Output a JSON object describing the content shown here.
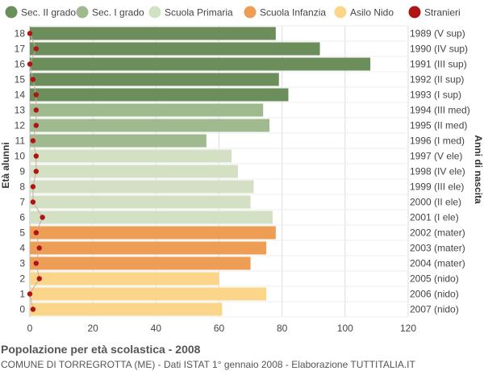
{
  "chart_data": {
    "type": "bar",
    "orientation": "horizontal",
    "ylabel_left": "Età alunni",
    "ylabel_right": "Anni di nascita",
    "xlim": [
      0,
      120
    ],
    "x_ticks": [
      "0",
      "20",
      "40",
      "60",
      "80",
      "100",
      "120"
    ],
    "grid": true,
    "legend_position": "top",
    "legend": [
      {
        "name": "Sec. II grado",
        "color": "#6b8e5a"
      },
      {
        "name": "Sec. I grado",
        "color": "#9fba8e"
      },
      {
        "name": "Scuola Primaria",
        "color": "#d4e0c4"
      },
      {
        "name": "Scuola Infanzia",
        "color": "#ee9d55"
      },
      {
        "name": "Asilo Nido",
        "color": "#fbd68a"
      },
      {
        "name": "Stranieri",
        "color": "#b01515"
      }
    ],
    "rows": [
      {
        "age": "18",
        "birth": "1989 (V sup)",
        "value": 78,
        "group": 0,
        "stranieri": 0
      },
      {
        "age": "17",
        "birth": "1990 (IV sup)",
        "value": 92,
        "group": 0,
        "stranieri": 2
      },
      {
        "age": "16",
        "birth": "1991 (III sup)",
        "value": 108,
        "group": 0,
        "stranieri": 0
      },
      {
        "age": "15",
        "birth": "1992 (II sup)",
        "value": 79,
        "group": 0,
        "stranieri": 1
      },
      {
        "age": "14",
        "birth": "1993 (I sup)",
        "value": 82,
        "group": 0,
        "stranieri": 2
      },
      {
        "age": "13",
        "birth": "1994 (III med)",
        "value": 74,
        "group": 1,
        "stranieri": 2
      },
      {
        "age": "12",
        "birth": "1995 (II med)",
        "value": 76,
        "group": 1,
        "stranieri": 2
      },
      {
        "age": "11",
        "birth": "1996 (I med)",
        "value": 56,
        "group": 1,
        "stranieri": 1
      },
      {
        "age": "10",
        "birth": "1997 (V ele)",
        "value": 64,
        "group": 2,
        "stranieri": 2
      },
      {
        "age": "9",
        "birth": "1998 (IV ele)",
        "value": 66,
        "group": 2,
        "stranieri": 2
      },
      {
        "age": "8",
        "birth": "1999 (III ele)",
        "value": 71,
        "group": 2,
        "stranieri": 1
      },
      {
        "age": "7",
        "birth": "2000 (II ele)",
        "value": 70,
        "group": 2,
        "stranieri": 1
      },
      {
        "age": "6",
        "birth": "2001 (I ele)",
        "value": 77,
        "group": 2,
        "stranieri": 4
      },
      {
        "age": "5",
        "birth": "2002 (mater)",
        "value": 78,
        "group": 3,
        "stranieri": 2
      },
      {
        "age": "4",
        "birth": "2003 (mater)",
        "value": 75,
        "group": 3,
        "stranieri": 3
      },
      {
        "age": "3",
        "birth": "2004 (mater)",
        "value": 70,
        "group": 3,
        "stranieri": 2
      },
      {
        "age": "2",
        "birth": "2005 (nido)",
        "value": 60,
        "group": 4,
        "stranieri": 3
      },
      {
        "age": "1",
        "birth": "2006 (nido)",
        "value": 75,
        "group": 4,
        "stranieri": 0
      },
      {
        "age": "0",
        "birth": "2007 (nido)",
        "value": 61,
        "group": 4,
        "stranieri": 1
      }
    ]
  },
  "footer": {
    "title": "Popolazione per età scolastica - 2008",
    "subtitle": "COMUNE DI TORREGROTTA (ME) - Dati ISTAT 1° gennaio 2008 - Elaborazione TUTTITALIA.IT"
  }
}
